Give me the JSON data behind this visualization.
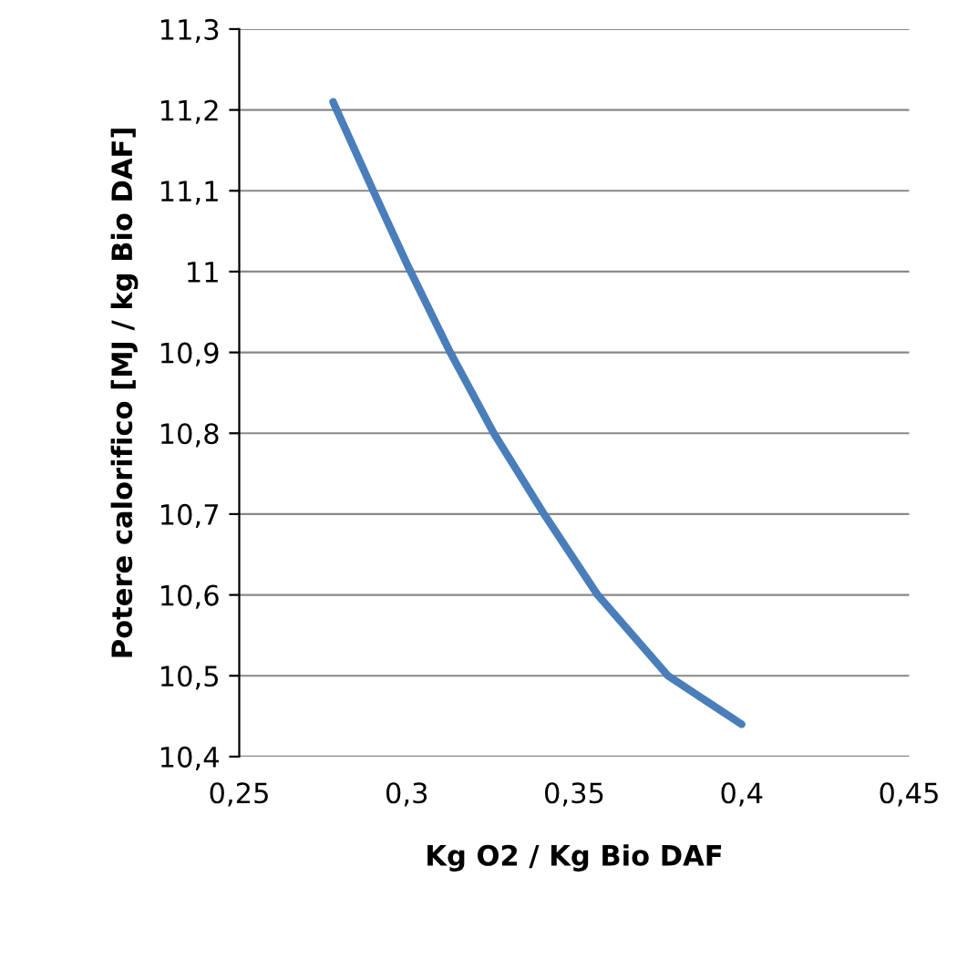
{
  "chart_data": {
    "type": "line",
    "xlabel": "Kg O2 / Kg Bio DAF",
    "ylabel": "Potere calorifico [MJ / kg Bio DAF]",
    "series": [
      {
        "color": "#4a7ebb",
        "x": [
          0.278,
          0.29,
          0.3,
          0.313,
          0.326,
          0.341,
          0.357,
          0.378,
          0.4
        ],
        "values": [
          11.21,
          11.1,
          11.01,
          10.9,
          10.8,
          10.7,
          10.6,
          10.5,
          10.44
        ]
      }
    ],
    "xlim": [
      0.25,
      0.45
    ],
    "ylim": [
      10.4,
      11.3
    ],
    "xticks": [
      {
        "value": 0.25,
        "label": "0,25"
      },
      {
        "value": 0.3,
        "label": "0,3"
      },
      {
        "value": 0.35,
        "label": "0,35"
      },
      {
        "value": 0.4,
        "label": "0,4"
      },
      {
        "value": 0.45,
        "label": "0,45"
      }
    ],
    "yticks": [
      {
        "value": 10.4,
        "label": "10,4"
      },
      {
        "value": 10.5,
        "label": "10,5"
      },
      {
        "value": 10.6,
        "label": "10,6"
      },
      {
        "value": 10.7,
        "label": "10,7"
      },
      {
        "value": 10.8,
        "label": "10,8"
      },
      {
        "value": 10.9,
        "label": "10,9"
      },
      {
        "value": 11,
        "label": "11"
      },
      {
        "value": 11.1,
        "label": "11,1"
      },
      {
        "value": 11.2,
        "label": "11,2"
      },
      {
        "value": 11.3,
        "label": "11,3"
      }
    ],
    "grid": "y",
    "marker": "none",
    "line_style": "solid",
    "legend": false
  }
}
